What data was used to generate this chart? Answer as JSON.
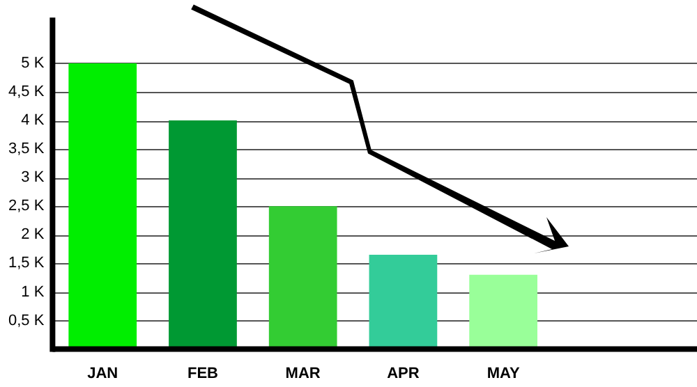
{
  "chart_data": {
    "type": "bar",
    "categories": [
      "JAN",
      "FEB",
      "MAR",
      "APR",
      "MAY"
    ],
    "values": [
      5,
      4,
      2.5,
      1.65,
      1.3
    ],
    "colors": [
      "#00ee00",
      "#009933",
      "#33cc33",
      "#33cc99",
      "#99ff99"
    ],
    "ylim": [
      0,
      5.8
    ],
    "yticks": [
      {
        "value": 0.5,
        "label": "0,5 K"
      },
      {
        "value": 1,
        "label": "1 K"
      },
      {
        "value": 1.5,
        "label": "1,5 K"
      },
      {
        "value": 2,
        "label": "2 K"
      },
      {
        "value": 2.5,
        "label": "2,5 K"
      },
      {
        "value": 3,
        "label": "3 K"
      },
      {
        "value": 3.5,
        "label": "3,5 K"
      },
      {
        "value": 4,
        "label": "4 K"
      },
      {
        "value": 4.5,
        "label": "4,5 K"
      },
      {
        "value": 5,
        "label": "5 K"
      }
    ],
    "grid": "y",
    "legend": false
  }
}
